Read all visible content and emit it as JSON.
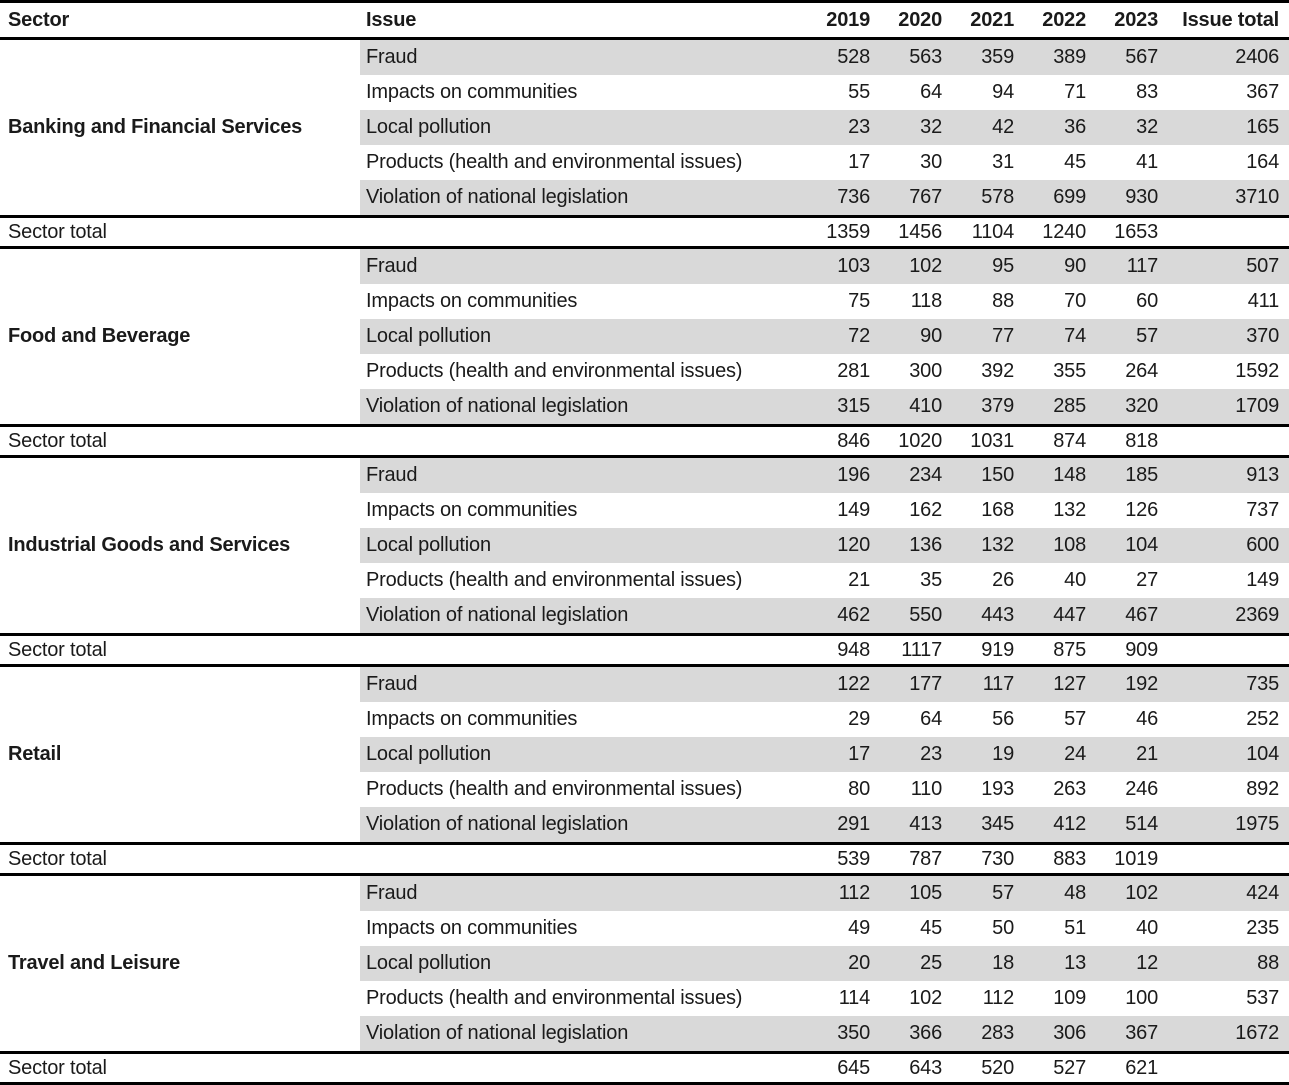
{
  "colors": {
    "stripe": "#d9d9d9",
    "rule": "#000000",
    "text": "#1a1a1a",
    "bg": "#ffffff"
  },
  "chart_data": {
    "type": "table",
    "columns": [
      "Sector",
      "Issue",
      "2019",
      "2020",
      "2021",
      "2022",
      "2023",
      "Issue total"
    ],
    "years": [
      "2019",
      "2020",
      "2021",
      "2022",
      "2023"
    ],
    "sector_total_label": "Sector total",
    "sectors": [
      {
        "name": "Banking and Financial Services",
        "rows": [
          {
            "issue": "Fraud",
            "values": [
              528,
              563,
              359,
              389,
              567
            ],
            "total": 2406
          },
          {
            "issue": "Impacts on communities",
            "values": [
              55,
              64,
              94,
              71,
              83
            ],
            "total": 367
          },
          {
            "issue": "Local pollution",
            "values": [
              23,
              32,
              42,
              36,
              32
            ],
            "total": 165
          },
          {
            "issue": "Products (health and environmental issues)",
            "values": [
              17,
              30,
              31,
              45,
              41
            ],
            "total": 164
          },
          {
            "issue": "Violation of national legislation",
            "values": [
              736,
              767,
              578,
              699,
              930
            ],
            "total": 3710
          }
        ],
        "sector_total": [
          1359,
          1456,
          1104,
          1240,
          1653
        ]
      },
      {
        "name": "Food and Beverage",
        "rows": [
          {
            "issue": "Fraud",
            "values": [
              103,
              102,
              95,
              90,
              117
            ],
            "total": 507
          },
          {
            "issue": "Impacts on communities",
            "values": [
              75,
              118,
              88,
              70,
              60
            ],
            "total": 411
          },
          {
            "issue": "Local pollution",
            "values": [
              72,
              90,
              77,
              74,
              57
            ],
            "total": 370
          },
          {
            "issue": "Products (health and environmental issues)",
            "values": [
              281,
              300,
              392,
              355,
              264
            ],
            "total": 1592
          },
          {
            "issue": "Violation of national legislation",
            "values": [
              315,
              410,
              379,
              285,
              320
            ],
            "total": 1709
          }
        ],
        "sector_total": [
          846,
          1020,
          1031,
          874,
          818
        ]
      },
      {
        "name": "Industrial Goods and Services",
        "rows": [
          {
            "issue": "Fraud",
            "values": [
              196,
              234,
              150,
              148,
              185
            ],
            "total": 913
          },
          {
            "issue": "Impacts on communities",
            "values": [
              149,
              162,
              168,
              132,
              126
            ],
            "total": 737
          },
          {
            "issue": "Local pollution",
            "values": [
              120,
              136,
              132,
              108,
              104
            ],
            "total": 600
          },
          {
            "issue": "Products (health and environmental issues)",
            "values": [
              21,
              35,
              26,
              40,
              27
            ],
            "total": 149
          },
          {
            "issue": "Violation of national legislation",
            "values": [
              462,
              550,
              443,
              447,
              467
            ],
            "total": 2369
          }
        ],
        "sector_total": [
          948,
          1117,
          919,
          875,
          909
        ]
      },
      {
        "name": "Retail",
        "rows": [
          {
            "issue": "Fraud",
            "values": [
              122,
              177,
              117,
              127,
              192
            ],
            "total": 735
          },
          {
            "issue": "Impacts on communities",
            "values": [
              29,
              64,
              56,
              57,
              46
            ],
            "total": 252
          },
          {
            "issue": "Local pollution",
            "values": [
              17,
              23,
              19,
              24,
              21
            ],
            "total": 104
          },
          {
            "issue": "Products (health and environmental issues)",
            "values": [
              80,
              110,
              193,
              263,
              246
            ],
            "total": 892
          },
          {
            "issue": "Violation of national legislation",
            "values": [
              291,
              413,
              345,
              412,
              514
            ],
            "total": 1975
          }
        ],
        "sector_total": [
          539,
          787,
          730,
          883,
          1019
        ]
      },
      {
        "name": "Travel and Leisure",
        "rows": [
          {
            "issue": "Fraud",
            "values": [
              112,
              105,
              57,
              48,
              102
            ],
            "total": 424
          },
          {
            "issue": "Impacts on communities",
            "values": [
              49,
              45,
              50,
              51,
              40
            ],
            "total": 235
          },
          {
            "issue": "Local pollution",
            "values": [
              20,
              25,
              18,
              13,
              12
            ],
            "total": 88
          },
          {
            "issue": "Products (health and environmental issues)",
            "values": [
              114,
              102,
              112,
              109,
              100
            ],
            "total": 537
          },
          {
            "issue": "Violation of national legislation",
            "values": [
              350,
              366,
              283,
              306,
              367
            ],
            "total": 1672
          }
        ],
        "sector_total": [
          645,
          643,
          520,
          527,
          621
        ]
      }
    ]
  }
}
